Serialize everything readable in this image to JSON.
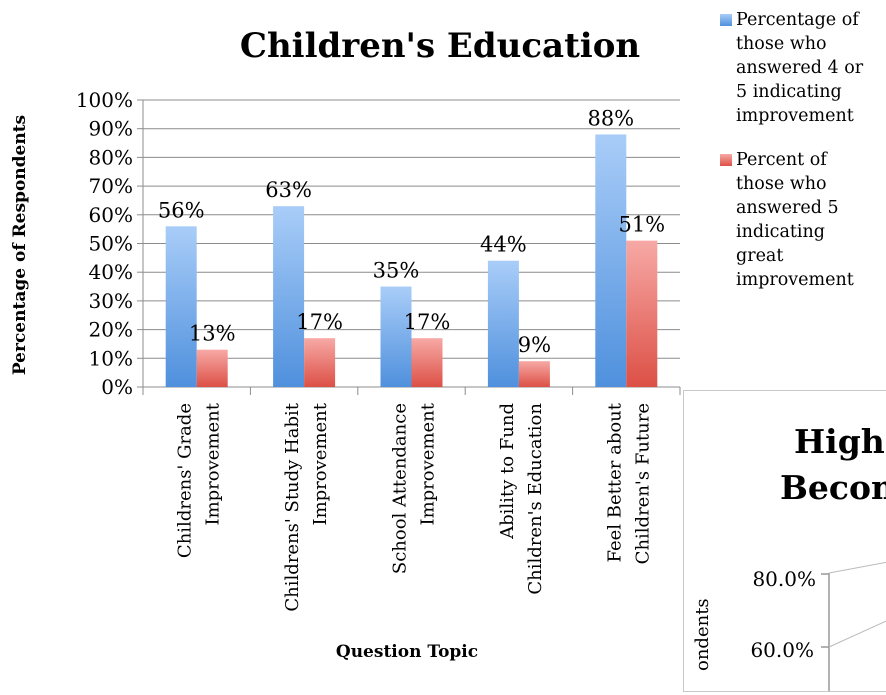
{
  "chart_data": {
    "type": "bar",
    "title": "Children's Education",
    "xlabel": "Question Topic",
    "ylabel": "Percentage of Respondents",
    "ylim": [
      0,
      100
    ],
    "yticks": [
      "0%",
      "10%",
      "20%",
      "30%",
      "40%",
      "50%",
      "60%",
      "70%",
      "80%",
      "90%",
      "100%"
    ],
    "grid": true,
    "legend_position": "right",
    "categories": [
      [
        "Childrens' Grade",
        "Improvement"
      ],
      [
        "Childrens' Study Habit",
        "Improvement"
      ],
      [
        "School Attendance",
        "Improvement"
      ],
      [
        "Ability to Fund",
        "Children's Education"
      ],
      [
        "Feel Better about",
        "Children's Future"
      ]
    ],
    "series": [
      {
        "name": "Percentage of those who answered 4 or 5 indicating improvement",
        "name_lines": [
          "Percentage of",
          "those who",
          "answered 4 or",
          "5 indicating",
          "improvement"
        ],
        "values": [
          56,
          63,
          35,
          44,
          88
        ],
        "labels": [
          "56%",
          "63%",
          "35%",
          "44%",
          "88%"
        ],
        "color": "#5b9be6"
      },
      {
        "name": "Percent of those who answered 5 indicating great improvement",
        "name_lines": [
          "Percent of",
          "those who",
          "answered 5",
          "indicating",
          "great",
          "improvement"
        ],
        "values": [
          13,
          17,
          17,
          9,
          51
        ],
        "labels": [
          "13%",
          "17%",
          "17%",
          "9%",
          "51%"
        ],
        "color": "#e8625c"
      }
    ]
  },
  "second_chart": {
    "title_lines": [
      "High",
      "Becom"
    ],
    "ylabel_fragment": "ondents",
    "ytick_labels": [
      "80.0%",
      "60.0%"
    ]
  }
}
